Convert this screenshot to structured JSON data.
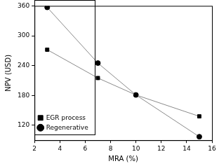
{
  "chart_data": {
    "type": "line",
    "x_label": "MRA (%)",
    "y_label": "NPV (USD)",
    "xlim": [
      2,
      16
    ],
    "xticks": [
      2,
      4,
      6,
      8,
      10,
      12,
      14,
      16
    ],
    "ylim": [
      90,
      360
    ],
    "yticks": [
      120,
      180,
      240,
      300,
      360
    ],
    "grid": false,
    "legend": "upper right",
    "series": [
      {
        "name": "EGR process",
        "color": "#000000",
        "marker": "square",
        "x": [
          3,
          7,
          10,
          15
        ],
        "values": [
          272,
          215,
          181,
          138
        ]
      },
      {
        "name": "Regenerative",
        "color": "#000000",
        "marker": "circle",
        "x": [
          3,
          7,
          10,
          15
        ],
        "values": [
          357,
          245,
          181,
          97
        ]
      }
    ]
  }
}
